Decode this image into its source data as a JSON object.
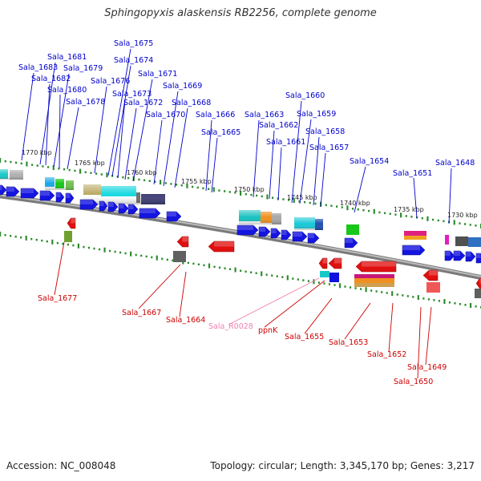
{
  "title": "Sphingopyxis alaskensis RB2256, complete genome",
  "footer": {
    "accession": "Accession: NC_008048",
    "summary": "Topology: circular; Length: 3,345,170 bp; Genes: 3,217"
  },
  "colors": {
    "forward_label": "#0000cc",
    "reverse_label": "#cc0000",
    "rna_label": "#f080b0",
    "backbone": "#888888",
    "forward_arrow": "#1515e0",
    "reverse_arrow": "#e01010"
  },
  "scale_labels": [
    "1770 kbp",
    "1765 kbp",
    "1760 kbp",
    "1755 kbp",
    "1750 kbp",
    "1745 kbp",
    "1740 kbp",
    "1735 kbp",
    "1730 kbp"
  ],
  "forward_genes": [
    "Sala_1683",
    "Sala_1681",
    "Sala_1682",
    "Sala_1679",
    "Sala_1680",
    "Sala_1678",
    "Sala_1676",
    "Sala_1675",
    "Sala_1674",
    "Sala_1673",
    "Sala_1672",
    "Sala_1671",
    "Sala_1670",
    "Sala_1669",
    "Sala_1668",
    "Sala_1666",
    "Sala_1665",
    "Sala_1663",
    "Sala_1662",
    "Sala_1661",
    "Sala_1660",
    "Sala_1659",
    "Sala_1658",
    "Sala_1657",
    "Sala_1654",
    "Sala_1651",
    "Sala_1648"
  ],
  "reverse_genes": [
    "Sala_1677",
    "Sala_1667",
    "Sala_1664",
    "Sala_R0028",
    "ppnK",
    "Sala_1655",
    "Sala_1653",
    "Sala_1652",
    "Sala_1649",
    "Sala_1650"
  ]
}
